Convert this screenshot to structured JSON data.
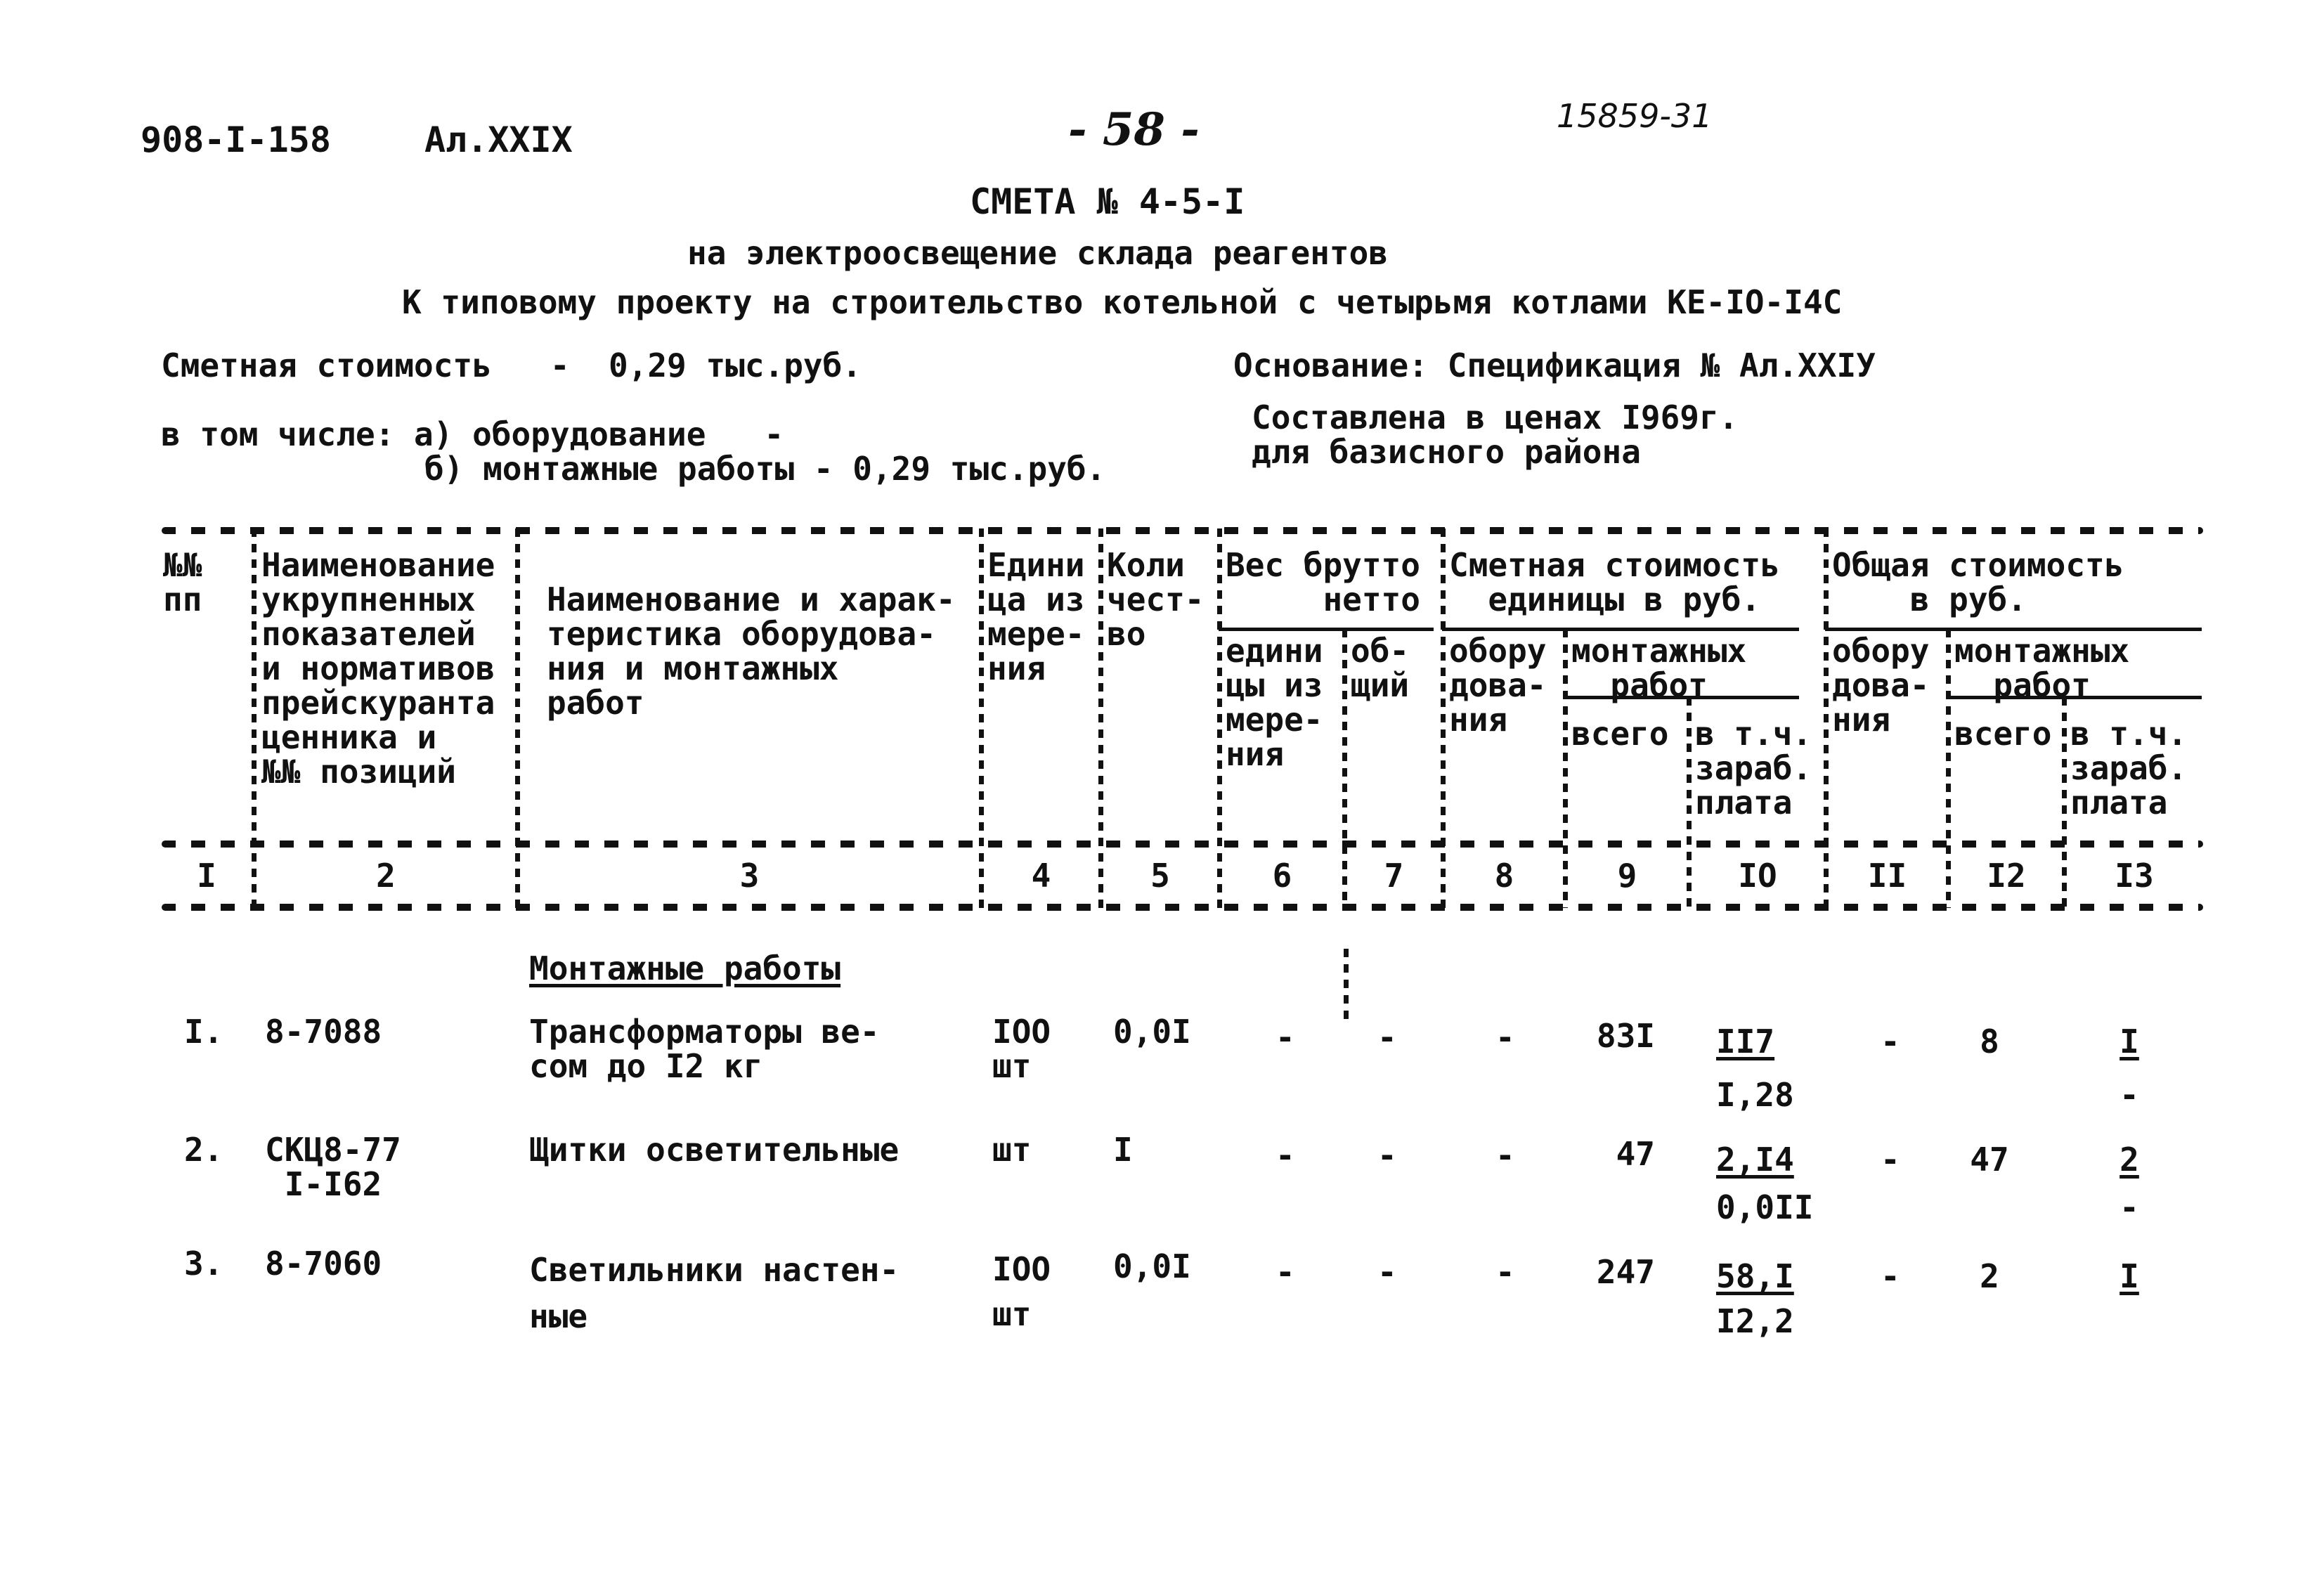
{
  "header": {
    "doc_code": "908-I-158",
    "album": "Ал.XXIX",
    "page": "- 58 -",
    "stamp": "15859-31"
  },
  "title": {
    "main": "СМЕТА № 4-5-I",
    "subtitle": "на электроосвещение склада реагентов",
    "project": "К типовому проекту на строительство котельной с четырьмя котлами КЕ-IO-I4С"
  },
  "summary": {
    "cost": "Сметная стоимость   -  0,29 тыс.руб.",
    "basis": "Основание: Спецификация № Ал.XXIУ",
    "including_a": "в том числе: а) оборудование   -",
    "including_b": "б) монтажные работы - 0,29 тыс.руб.",
    "prices": "Составлена в ценах I969г.\nдля базисного района"
  },
  "table": {
    "headers": {
      "c1": "№№\nпп",
      "c2": "Наименование\nукрупненных\nпоказателей\nи нормативов\nпрейскуранта\nценника и\n№№ позиций",
      "c3": "Наименование и харак-\nтеристика оборудова-\nния и монтажных\nработ",
      "c4": "Едини\nца из\nмере-\nния",
      "c5": "Коли\nчест-\nво",
      "weight_group": "Вес брутто\n     нетто",
      "c6": "едини\nцы из\nмере-\nния",
      "c7": "об-\nщий",
      "unit_cost_group": "Сметная стоимость\n  единицы в руб.",
      "c8": "обору\nдова-\nния",
      "unit_install": "монтажных\n  работ",
      "c9": "всего",
      "c10": "в т.ч.\nзараб.\nплата",
      "total_group": "Общая стоимость\n    в руб.",
      "c11": "обору\nдова-\nния",
      "total_install": "монтажных\n  работ",
      "c12": "всего",
      "c13": "в т.ч.\nзараб.\nплата"
    },
    "column_numbers": [
      "I",
      "2",
      "3",
      "4",
      "5",
      "6",
      "7",
      "8",
      "9",
      "IO",
      "II",
      "I2",
      "I3"
    ],
    "section": "Монтажные работы",
    "rows": [
      {
        "num": "I.",
        "code": "8-7088",
        "name": "Трансформаторы ве-\nсом до I2 кг",
        "unit": "IOO\nшт",
        "qty": "0,0I",
        "c6": "-",
        "c7": "-",
        "c8": "-",
        "c9": "83I",
        "c10_top": "II7",
        "c10_bottom": "I,28",
        "c11": "-",
        "c12": "8",
        "c13_top": "I",
        "c13_bottom": "-"
      },
      {
        "num": "2.",
        "code": "СКЦ8-77\n I-I62",
        "name": "Щитки осветительные",
        "unit": "шт",
        "qty": "I",
        "c6": "-",
        "c7": "-",
        "c8": "-",
        "c9": "47",
        "c10_top": "2,I4",
        "c10_bottom": "0,0II",
        "c11": "-",
        "c12": "47",
        "c13_top": "2",
        "c13_bottom": "-"
      },
      {
        "num": "3.",
        "code": "8-7060",
        "name": "Светильники настен-\nные",
        "unit": "IOO\nшт",
        "qty": "0,0I",
        "c6": "-",
        "c7": "-",
        "c8": "-",
        "c9": "247",
        "c10_top": "58,I",
        "c10_bottom": "I2,2",
        "c11": "-",
        "c12": "2",
        "c13_top": "I"
      }
    ]
  }
}
